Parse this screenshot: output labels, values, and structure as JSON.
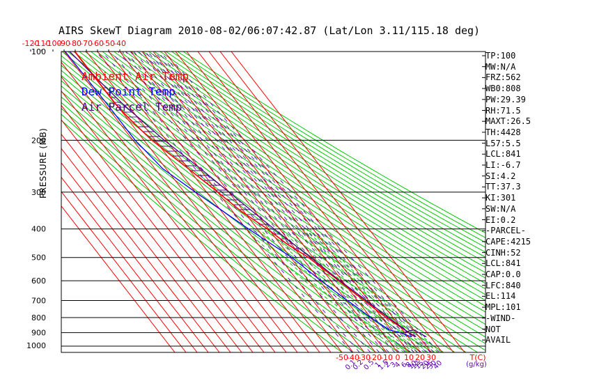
{
  "title": "AIRS SkewT Diagram 2010-08-02/06:07:42.87 (Lat/Lon 3.11/115.18 deg)",
  "legend": {
    "ambient": "Ambient Air Temp",
    "dewpoint": "Dew Point Temp",
    "parcel": "Air Parcel Temp"
  },
  "colors": {
    "ambient": "#ff0000",
    "dewpoint": "#0000ff",
    "parcel": "#4b0082",
    "isotherm": "#ff0000",
    "dry_adiabat": "#00c800",
    "mixing_ratio": "#5a00b4",
    "moist_adiabat": "#00c800",
    "isobar": "#000000"
  },
  "indices": [
    "TP:100",
    "MW:N/A",
    "FRZ:562",
    "WB0:808",
    "PW:29.39",
    "RH:71.5",
    "MAXT:26.5",
    "TH:4428",
    "L57:5.5",
    "LCL:841",
    "LI:-6.7",
    "SI:4.2",
    "TT:37.3",
    "KI:301",
    "SW:N/A",
    "EI:0.2",
    "-PARCEL-",
    "CAPE:4215",
    "CINH:52",
    "LCL:841",
    "CAP:0.0",
    "LFC:840",
    "EL:114",
    "MPL:101",
    "-WIND-",
    "NOT",
    "AVAIL"
  ],
  "chart_data": {
    "type": "line",
    "title": "AIRS SkewT Diagram 2010-08-02/06:07:42.87 (Lat/Lon 3.11/115.18 deg)",
    "ylabel": "PRESSURE (MB)",
    "xlabel": "T(C)",
    "ylim": [
      1050,
      100
    ],
    "pressure_ticks": [
      100,
      200,
      300,
      400,
      500,
      600,
      700,
      800,
      900,
      1000
    ],
    "top_temp_ticks": [
      -120,
      -110,
      -100,
      -90,
      -80,
      -70,
      -60,
      -50,
      -40
    ],
    "bottom_temp_ticks": [
      -50,
      -40,
      -30,
      -20,
      -10,
      0,
      10,
      20,
      30
    ],
    "bottom_temp_unit": "T(C)",
    "mixing_ratio_labels": [
      "0.1",
      "0.2",
      "0.5",
      "1",
      "1.5",
      "2",
      "3",
      "4",
      "6",
      "8",
      "10",
      "12",
      "15",
      "20",
      "25",
      "30",
      "40"
    ],
    "mixing_ratio_unit": "(g/kg)",
    "series": [
      {
        "name": "Ambient Air Temp",
        "points": [
          {
            "p": 100,
            "t": -80.5
          },
          {
            "p": 110,
            "t": -80.5
          },
          {
            "p": 150,
            "t": -80.5
          },
          {
            "p": 170,
            "t": -78
          },
          {
            "p": 200,
            "t": -73
          },
          {
            "p": 250,
            "t": -60
          },
          {
            "p": 300,
            "t": -50
          },
          {
            "p": 350,
            "t": -42
          },
          {
            "p": 400,
            "t": -31
          },
          {
            "p": 450,
            "t": -24
          },
          {
            "p": 500,
            "t": -14
          },
          {
            "p": 600,
            "t": -3
          },
          {
            "p": 700,
            "t": 6
          },
          {
            "p": 750,
            "t": 10
          },
          {
            "p": 800,
            "t": 14
          },
          {
            "p": 850,
            "t": 19
          },
          {
            "p": 900,
            "t": 24
          },
          {
            "p": 930,
            "t": 26.5
          }
        ]
      },
      {
        "name": "Dew Point Temp",
        "points": [
          {
            "p": 100,
            "t": -89
          },
          {
            "p": 150,
            "t": -88
          },
          {
            "p": 200,
            "t": -88
          },
          {
            "p": 250,
            "t": -83
          },
          {
            "p": 300,
            "t": -70
          },
          {
            "p": 400,
            "t": -48
          },
          {
            "p": 500,
            "t": -29
          },
          {
            "p": 600,
            "t": -19
          },
          {
            "p": 700,
            "t": -9
          },
          {
            "p": 800,
            "t": 0
          },
          {
            "p": 880,
            "t": 8
          },
          {
            "p": 900,
            "t": 16
          },
          {
            "p": 930,
            "t": 23
          }
        ]
      },
      {
        "name": "Air Parcel Temp",
        "points": [
          {
            "p": 100,
            "t": -85
          },
          {
            "p": 150,
            "t": -74
          },
          {
            "p": 200,
            "t": -62
          },
          {
            "p": 250,
            "t": -49
          },
          {
            "p": 300,
            "t": -40
          },
          {
            "p": 350,
            "t": -32
          },
          {
            "p": 400,
            "t": -25
          },
          {
            "p": 500,
            "t": -12
          },
          {
            "p": 600,
            "t": -2
          },
          {
            "p": 700,
            "t": 8
          },
          {
            "p": 800,
            "t": 16
          },
          {
            "p": 850,
            "t": 20
          },
          {
            "p": 900,
            "t": 23.5
          },
          {
            "p": 930,
            "t": 26.5
          }
        ]
      }
    ]
  }
}
